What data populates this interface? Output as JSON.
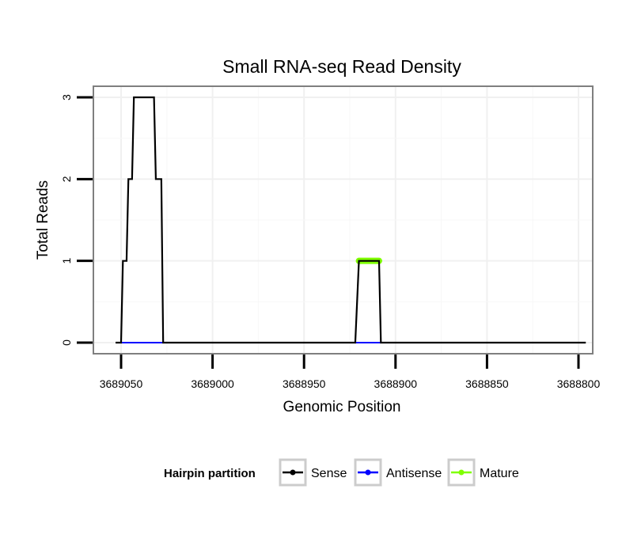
{
  "chart_data": {
    "type": "line",
    "title": "Small RNA-seq Read Density",
    "xlabel": "Genomic Position",
    "ylabel": "Total Reads",
    "x_reversed": true,
    "xlim": [
      3689065,
      3688795
    ],
    "ylim": [
      0,
      3
    ],
    "x_ticks": [
      {
        "value": 3689050,
        "label": "3689050"
      },
      {
        "value": 3689000,
        "label": "3689000"
      },
      {
        "value": 3688950,
        "label": "3688950"
      },
      {
        "value": 3688900,
        "label": "3688900"
      },
      {
        "value": 3688850,
        "label": "3688850"
      },
      {
        "value": 3688800,
        "label": "3688800"
      }
    ],
    "y_ticks": [
      {
        "value": 0,
        "label": "0"
      },
      {
        "value": 1,
        "label": "1"
      },
      {
        "value": 2,
        "label": "2"
      },
      {
        "value": 3,
        "label": "3"
      }
    ],
    "grid": true,
    "legend": {
      "title": "Hairpin partition",
      "position": "bottom",
      "entries": [
        {
          "name": "Sense",
          "color": "#000000"
        },
        {
          "name": "Antisense",
          "color": "#0000ff"
        },
        {
          "name": "Mature",
          "color": "#7fff00"
        }
      ]
    },
    "series": [
      {
        "name": "Sense",
        "color": "#000000",
        "x": [
          3689053,
          3689050,
          3689049,
          3689047,
          3689046,
          3689044,
          3689043,
          3689032,
          3689031,
          3689028,
          3689027,
          3689025,
          3688922,
          3688920,
          3688909,
          3688908,
          3688796
        ],
        "y": [
          0,
          0,
          1,
          1,
          2,
          2,
          3,
          3,
          2,
          2,
          0,
          0,
          0,
          1,
          1,
          0,
          0
        ]
      },
      {
        "name": "Antisense",
        "color": "#0000ff",
        "x": [
          3689050,
          3689025,
          3688922,
          3688908
        ],
        "y": [
          0,
          0,
          0,
          0
        ],
        "segments": [
          [
            3689050,
            3689025
          ],
          [
            3688922,
            3688908
          ]
        ]
      },
      {
        "name": "Mature",
        "color": "#7fff00",
        "x": [
          3688920,
          3688909
        ],
        "y": [
          1,
          1
        ]
      }
    ]
  }
}
